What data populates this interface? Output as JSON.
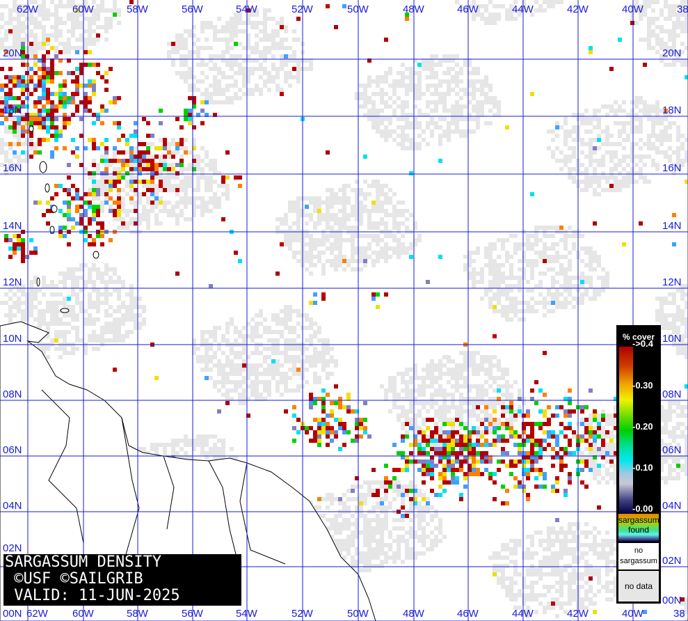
{
  "title": {
    "line1": "SARGASSUM DENSITY",
    "line2": " ©USF ©SAILGRIB",
    "line3": " VALID: 11-JUN-2025"
  },
  "longitude_labels": [
    "62W",
    "60W",
    "58W",
    "56W",
    "54W",
    "52W",
    "50W",
    "48W",
    "46W",
    "44W",
    "42W",
    "40W",
    "38"
  ],
  "latitude_labels": [
    "20N",
    "18N",
    "16N",
    "14N",
    "12N",
    "10N",
    "08N",
    "06N",
    "04N",
    "02N",
    "00N"
  ],
  "legend": {
    "header": "% cover",
    "ticks": [
      "->0.4",
      "-0.30",
      "-0.20",
      "-0.10",
      "-0.00"
    ],
    "found": "sargassum found",
    "no_sargassum": "no sargassum",
    "no_data": "no data"
  },
  "colors": {
    "grid": "#1a1ad8",
    "high_density": "#b00000",
    "no_data": "#e6e6e6",
    "land_outline": "#000000"
  }
}
